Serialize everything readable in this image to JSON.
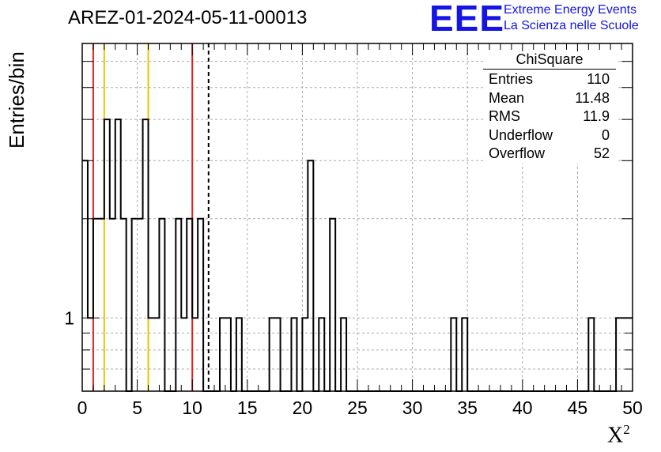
{
  "title": "AREZ-01-2024-05-11-00013",
  "logo": {
    "text": "EEE",
    "line1": "Extreme Energy Events",
    "line2": "La Scienza nelle Scuole",
    "color": "#1414e6"
  },
  "stats": {
    "title": "ChiSquare",
    "rows": [
      {
        "label": "Entries",
        "value": "110"
      },
      {
        "label": "Mean",
        "value": "11.48"
      },
      {
        "label": "RMS",
        "value": "11.9"
      },
      {
        "label": "Underflow",
        "value": "0"
      },
      {
        "label": "Overflow",
        "value": "52"
      }
    ]
  },
  "chart_data": {
    "type": "bar",
    "histogram_style": "step",
    "xlabel": "X",
    "xlabel_superscript": "2",
    "ylabel": "Entries/bin",
    "xlim": [
      0,
      50
    ],
    "ylim": [
      0.6,
      6.8
    ],
    "yscale": "log",
    "grid": true,
    "bin_width": 0.5,
    "x_ticks": [
      "0",
      "5",
      "10",
      "15",
      "20",
      "25",
      "30",
      "35",
      "40",
      "45",
      "50"
    ],
    "y_ticks": [
      "1"
    ],
    "bins": [
      {
        "x0": 0.0,
        "count": 3
      },
      {
        "x0": 0.5,
        "count": 1
      },
      {
        "x0": 1.0,
        "count": 2
      },
      {
        "x0": 2.0,
        "count": 4
      },
      {
        "x0": 2.5,
        "count": 2
      },
      {
        "x0": 3.0,
        "count": 4
      },
      {
        "x0": 3.5,
        "count": 2
      },
      {
        "x0": 4.0,
        "count": 0
      },
      {
        "x0": 4.5,
        "count": 2
      },
      {
        "x0": 5.0,
        "count": 2
      },
      {
        "x0": 5.5,
        "count": 4
      },
      {
        "x0": 6.0,
        "count": 1
      },
      {
        "x0": 7.0,
        "count": 2
      },
      {
        "x0": 7.5,
        "count": 0
      },
      {
        "x0": 8.5,
        "count": 2
      },
      {
        "x0": 9.0,
        "count": 1
      },
      {
        "x0": 9.5,
        "count": 2
      },
      {
        "x0": 10.0,
        "count": 1
      },
      {
        "x0": 10.5,
        "count": 2
      },
      {
        "x0": 11.0,
        "count": 0
      },
      {
        "x0": 12.5,
        "count": 1
      },
      {
        "x0": 13.5,
        "count": 0
      },
      {
        "x0": 14.0,
        "count": 1
      },
      {
        "x0": 14.5,
        "count": 0
      },
      {
        "x0": 17.0,
        "count": 1
      },
      {
        "x0": 18.0,
        "count": 0
      },
      {
        "x0": 19.0,
        "count": 1
      },
      {
        "x0": 19.5,
        "count": 0
      },
      {
        "x0": 20.0,
        "count": 1
      },
      {
        "x0": 20.5,
        "count": 3
      },
      {
        "x0": 21.0,
        "count": 0
      },
      {
        "x0": 21.5,
        "count": 1
      },
      {
        "x0": 22.0,
        "count": 0
      },
      {
        "x0": 22.5,
        "count": 2
      },
      {
        "x0": 23.0,
        "count": 0
      },
      {
        "x0": 23.5,
        "count": 1
      },
      {
        "x0": 24.0,
        "count": 0
      },
      {
        "x0": 33.5,
        "count": 1
      },
      {
        "x0": 34.0,
        "count": 0
      },
      {
        "x0": 34.5,
        "count": 1
      },
      {
        "x0": 35.0,
        "count": 0
      },
      {
        "x0": 46.0,
        "count": 1
      },
      {
        "x0": 46.5,
        "count": 0
      },
      {
        "x0": 48.5,
        "count": 1
      }
    ],
    "vertical_lines": [
      {
        "x": 1.0,
        "color": "#e02020",
        "style": "solid"
      },
      {
        "x": 2.0,
        "color": "#f2c200",
        "style": "solid"
      },
      {
        "x": 6.0,
        "color": "#f2c200",
        "style": "solid"
      },
      {
        "x": 10.0,
        "color": "#e02020",
        "style": "solid"
      },
      {
        "x": 11.48,
        "color": "#000000",
        "style": "dashed"
      }
    ]
  }
}
